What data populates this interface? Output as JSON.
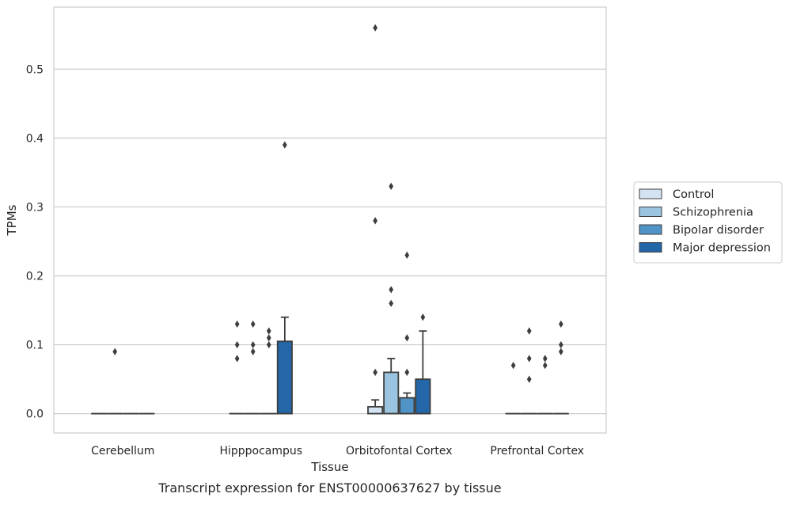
{
  "chart_data": {
    "type": "box",
    "caption": "Transcript expression for ENST00000637627 by tissue",
    "xlabel": "Tissue",
    "ylabel": "TPMs",
    "ylim": [
      -0.028,
      0.59
    ],
    "yticks": [
      0.0,
      0.1,
      0.2,
      0.3,
      0.4,
      0.5
    ],
    "ytick_labels": [
      "0.0",
      "0.1",
      "0.2",
      "0.3",
      "0.4",
      "0.5"
    ],
    "grid": "horizontal",
    "legend_position": "right",
    "categories": [
      "Cerebellum",
      "Hipppocampus",
      "Orbitofontal Cortex",
      "Prefrontal Cortex"
    ],
    "series": [
      {
        "name": "Control",
        "color": "#d4e3f2",
        "boxes": [
          {
            "category": "Cerebellum",
            "q1": 0,
            "median": 0,
            "q3": 0,
            "whisker_low": 0,
            "whisker_high": 0,
            "outliers": []
          },
          {
            "category": "Hipppocampus",
            "q1": 0,
            "median": 0,
            "q3": 0,
            "whisker_low": 0,
            "whisker_high": 0,
            "outliers": [
              0.08,
              0.1,
              0.13
            ]
          },
          {
            "category": "Orbitofontal Cortex",
            "q1": 0,
            "median": 0,
            "q3": 0.01,
            "whisker_low": 0,
            "whisker_high": 0.02,
            "outliers": [
              0.06,
              0.28,
              0.56
            ]
          },
          {
            "category": "Prefrontal Cortex",
            "q1": 0,
            "median": 0,
            "q3": 0,
            "whisker_low": 0,
            "whisker_high": 0,
            "outliers": [
              0.07
            ]
          }
        ]
      },
      {
        "name": "Schizophrenia",
        "color": "#9ac4df",
        "boxes": [
          {
            "category": "Cerebellum",
            "q1": 0,
            "median": 0,
            "q3": 0,
            "whisker_low": 0,
            "whisker_high": 0,
            "outliers": [
              0.09
            ]
          },
          {
            "category": "Hipppocampus",
            "q1": 0,
            "median": 0,
            "q3": 0,
            "whisker_low": 0,
            "whisker_high": 0,
            "outliers": [
              0.09,
              0.1,
              0.13
            ]
          },
          {
            "category": "Orbitofontal Cortex",
            "q1": 0,
            "median": 0,
            "q3": 0.06,
            "whisker_low": 0,
            "whisker_high": 0.08,
            "outliers": [
              0.16,
              0.18,
              0.33
            ]
          },
          {
            "category": "Prefrontal Cortex",
            "q1": 0,
            "median": 0,
            "q3": 0,
            "whisker_low": 0,
            "whisker_high": 0,
            "outliers": [
              0.05,
              0.08,
              0.12
            ]
          }
        ]
      },
      {
        "name": "Bipolar disorder",
        "color": "#5093c6",
        "boxes": [
          {
            "category": "Cerebellum",
            "q1": 0,
            "median": 0,
            "q3": 0,
            "whisker_low": 0,
            "whisker_high": 0,
            "outliers": []
          },
          {
            "category": "Hipppocampus",
            "q1": 0,
            "median": 0,
            "q3": 0,
            "whisker_low": 0,
            "whisker_high": 0,
            "outliers": [
              0.1,
              0.11,
              0.12
            ]
          },
          {
            "category": "Orbitofontal Cortex",
            "q1": 0,
            "median": 0,
            "q3": 0.023,
            "whisker_low": 0,
            "whisker_high": 0.03,
            "outliers": [
              0.06,
              0.11,
              0.23
            ]
          },
          {
            "category": "Prefrontal Cortex",
            "q1": 0,
            "median": 0,
            "q3": 0,
            "whisker_low": 0,
            "whisker_high": 0,
            "outliers": [
              0.07,
              0.08
            ]
          }
        ]
      },
      {
        "name": "Major depression",
        "color": "#2367a9",
        "boxes": [
          {
            "category": "Cerebellum",
            "q1": 0,
            "median": 0,
            "q3": 0,
            "whisker_low": 0,
            "whisker_high": 0,
            "outliers": []
          },
          {
            "category": "Hipppocampus",
            "q1": 0,
            "median": 0,
            "q3": 0.105,
            "whisker_low": 0,
            "whisker_high": 0.14,
            "outliers": [
              0.39
            ]
          },
          {
            "category": "Orbitofontal Cortex",
            "q1": 0,
            "median": 0,
            "q3": 0.05,
            "whisker_low": 0,
            "whisker_high": 0.12,
            "outliers": [
              0.14
            ]
          },
          {
            "category": "Prefrontal Cortex",
            "q1": 0,
            "median": 0,
            "q3": 0,
            "whisker_low": 0,
            "whisker_high": 0,
            "outliers": [
              0.09,
              0.1,
              0.13
            ]
          }
        ]
      }
    ]
  }
}
